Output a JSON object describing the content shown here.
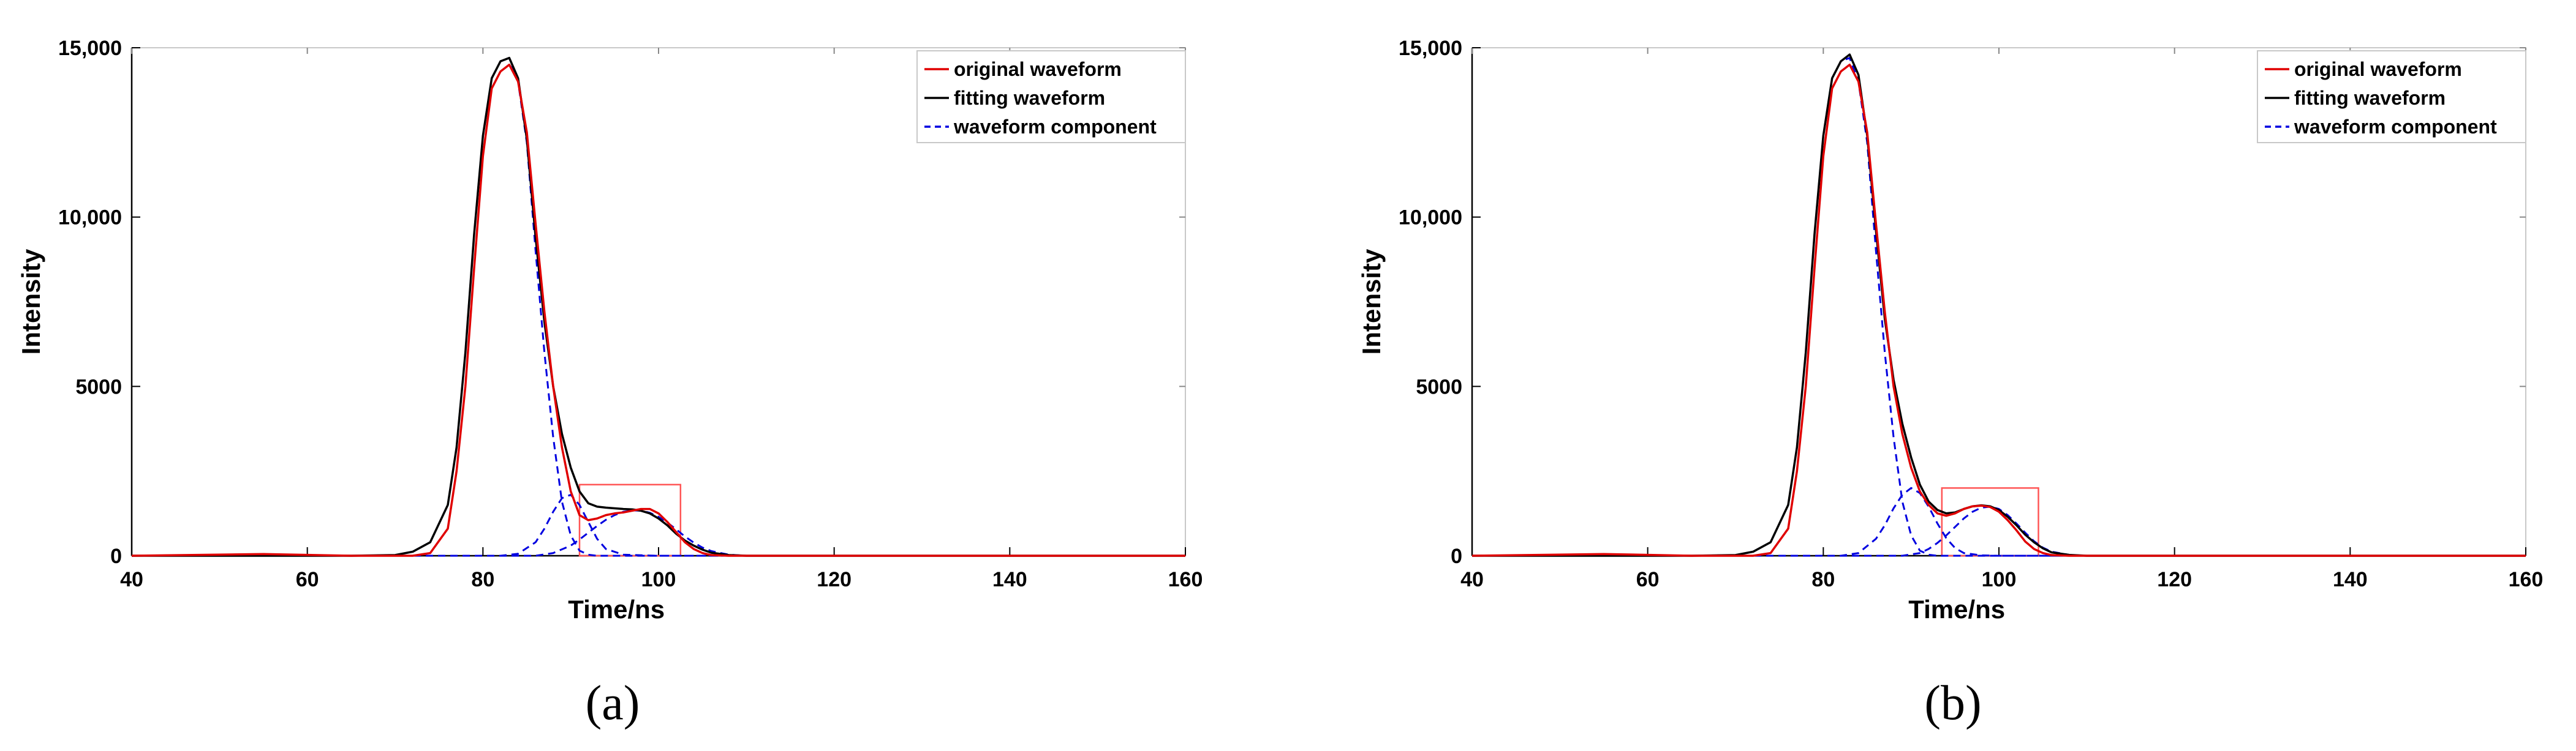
{
  "chart_data": [
    {
      "type": "line",
      "caption": "(a)",
      "xlabel": "Time/ns",
      "ylabel": "Intensity",
      "xlim": [
        40,
        160
      ],
      "ylim": [
        0,
        15000
      ],
      "x_ticks": [
        "40",
        "60",
        "80",
        "100",
        "120",
        "140",
        "160"
      ],
      "y_ticks": [
        "0",
        "5000",
        "10,000",
        "15,000"
      ],
      "legend_position": "top-right",
      "grid": false,
      "highlight_box": {
        "x": [
          91,
          102.5
        ],
        "y": [
          0,
          2100
        ],
        "color": "#ff5555"
      },
      "series": [
        {
          "name": "original waveform",
          "style": "solid",
          "color": "#e00000",
          "x": [
            40,
            55,
            65,
            70,
            72,
            74,
            76,
            77,
            78,
            79,
            80,
            81,
            82,
            83,
            84,
            85,
            86,
            87,
            88,
            89,
            90,
            91,
            92,
            93,
            94,
            95,
            96,
            97,
            98,
            99,
            100,
            101,
            102,
            103,
            104,
            105,
            106,
            108,
            110,
            115,
            120,
            160
          ],
          "y": [
            0,
            50,
            0,
            0,
            0,
            80,
            800,
            2500,
            5000,
            8500,
            11800,
            13800,
            14300,
            14500,
            14000,
            12500,
            9800,
            7200,
            5000,
            3200,
            1900,
            1200,
            1050,
            1100,
            1200,
            1250,
            1280,
            1330,
            1380,
            1380,
            1250,
            1000,
            700,
            400,
            200,
            80,
            20,
            0,
            0,
            0,
            0,
            0
          ]
        },
        {
          "name": "fitting waveform",
          "style": "solid",
          "color": "#000000",
          "x": [
            40,
            65,
            70,
            72,
            74,
            76,
            77,
            78,
            79,
            80,
            81,
            82,
            83,
            84,
            85,
            86,
            87,
            88,
            89,
            90,
            91,
            92,
            93,
            94,
            95,
            96,
            97,
            98,
            99,
            100,
            101,
            102,
            103,
            104,
            105,
            106,
            108,
            110,
            115,
            120,
            160
          ],
          "y": [
            0,
            0,
            20,
            120,
            400,
            1500,
            3200,
            6000,
            9500,
            12400,
            14100,
            14600,
            14700,
            14100,
            12300,
            9400,
            6900,
            5000,
            3600,
            2600,
            1900,
            1550,
            1450,
            1420,
            1400,
            1380,
            1370,
            1330,
            1250,
            1100,
            900,
            650,
            450,
            300,
            180,
            90,
            20,
            0,
            0,
            0,
            0
          ]
        },
        {
          "name": "waveform component",
          "style": "dashed",
          "color": "#0000e0",
          "x": [
            40,
            65,
            70,
            72,
            74,
            76,
            77,
            78,
            79,
            80,
            81,
            82,
            83,
            84,
            85,
            86,
            87,
            88,
            89,
            90,
            91,
            92,
            93,
            94,
            160
          ],
          "y": [
            0,
            0,
            20,
            120,
            400,
            1500,
            3200,
            6000,
            9500,
            12400,
            14100,
            14600,
            14700,
            14000,
            12200,
            9000,
            6000,
            3500,
            1600,
            600,
            150,
            30,
            0,
            0,
            0
          ]
        },
        {
          "name": "",
          "style": "dashed",
          "color": "#0000e0",
          "x": [
            40,
            82,
            84,
            86,
            87,
            88,
            89,
            90,
            91,
            92,
            93,
            94,
            96,
            100,
            160
          ],
          "y": [
            0,
            0,
            60,
            400,
            800,
            1300,
            1700,
            1800,
            1500,
            1000,
            500,
            200,
            30,
            0,
            0
          ]
        },
        {
          "name": "",
          "style": "dashed",
          "color": "#0000e0",
          "x": [
            40,
            86,
            88,
            90,
            91,
            92,
            93,
            94,
            95,
            96,
            97,
            98,
            99,
            100,
            101,
            102,
            103,
            104,
            105,
            106,
            108,
            110,
            160
          ],
          "y": [
            0,
            0,
            80,
            300,
            480,
            680,
            880,
            1060,
            1200,
            1300,
            1340,
            1330,
            1270,
            1150,
            980,
            780,
            570,
            390,
            240,
            140,
            30,
            0,
            0
          ]
        }
      ]
    },
    {
      "type": "line",
      "caption": "(b)",
      "xlabel": "Time/ns",
      "ylabel": "Intensity",
      "xlim": [
        40,
        160
      ],
      "ylim": [
        0,
        15000
      ],
      "x_ticks": [
        "40",
        "60",
        "80",
        "100",
        "120",
        "140",
        "160"
      ],
      "y_ticks": [
        "0",
        "5000",
        "10,000",
        "15,000"
      ],
      "legend_position": "top-right",
      "grid": false,
      "highlight_box": {
        "x": [
          93.5,
          104.5
        ],
        "y": [
          0,
          2000
        ],
        "color": "#ff5555"
      },
      "series": [
        {
          "name": "original waveform",
          "style": "solid",
          "color": "#e00000",
          "x": [
            40,
            55,
            65,
            70,
            72,
            74,
            76,
            77,
            78,
            79,
            80,
            81,
            82,
            83,
            84,
            85,
            86,
            87,
            88,
            89,
            90,
            91,
            92,
            93,
            94,
            95,
            96,
            97,
            98,
            99,
            100,
            101,
            102,
            103,
            104,
            105,
            106,
            108,
            110,
            115,
            120,
            160
          ],
          "y": [
            0,
            50,
            0,
            0,
            0,
            80,
            800,
            2500,
            5000,
            8500,
            11800,
            13800,
            14300,
            14500,
            14000,
            12500,
            9800,
            7200,
            5000,
            3600,
            2600,
            1900,
            1500,
            1250,
            1180,
            1250,
            1380,
            1460,
            1480,
            1440,
            1300,
            1050,
            750,
            420,
            200,
            80,
            20,
            0,
            0,
            0,
            0,
            0
          ]
        },
        {
          "name": "fitting waveform",
          "style": "solid",
          "color": "#000000",
          "x": [
            40,
            65,
            70,
            72,
            74,
            76,
            77,
            78,
            79,
            80,
            81,
            82,
            83,
            84,
            85,
            86,
            87,
            88,
            89,
            90,
            91,
            92,
            93,
            94,
            95,
            96,
            97,
            98,
            99,
            100,
            101,
            102,
            103,
            104,
            105,
            106,
            108,
            110,
            115,
            120,
            160
          ],
          "y": [
            0,
            0,
            20,
            120,
            400,
            1500,
            3200,
            6000,
            9500,
            12400,
            14100,
            14600,
            14800,
            14200,
            12400,
            9600,
            7000,
            5200,
            3900,
            2900,
            2100,
            1600,
            1350,
            1250,
            1280,
            1380,
            1460,
            1490,
            1460,
            1350,
            1150,
            900,
            620,
            400,
            220,
            100,
            25,
            0,
            0,
            0,
            0
          ]
        },
        {
          "name": "waveform component",
          "style": "dashed",
          "color": "#0000e0",
          "x": [
            40,
            65,
            70,
            72,
            74,
            76,
            77,
            78,
            79,
            80,
            81,
            82,
            83,
            84,
            85,
            86,
            87,
            88,
            89,
            90,
            91,
            92,
            93,
            94,
            160
          ],
          "y": [
            0,
            0,
            20,
            120,
            400,
            1500,
            3200,
            6000,
            9500,
            12400,
            14100,
            14600,
            14700,
            14000,
            12200,
            9000,
            6000,
            3500,
            1600,
            600,
            150,
            30,
            0,
            0,
            0
          ]
        },
        {
          "name": "",
          "style": "dashed",
          "color": "#0000e0",
          "x": [
            40,
            82,
            84,
            86,
            87,
            88,
            89,
            90,
            91,
            92,
            93,
            94,
            95,
            96,
            98,
            100,
            160
          ],
          "y": [
            0,
            0,
            80,
            500,
            900,
            1400,
            1800,
            2000,
            1850,
            1450,
            950,
            520,
            230,
            80,
            10,
            0,
            0
          ]
        },
        {
          "name": "",
          "style": "dashed",
          "color": "#0000e0",
          "x": [
            40,
            89,
            91,
            92,
            93,
            94,
            95,
            96,
            97,
            98,
            99,
            100,
            101,
            102,
            103,
            104,
            105,
            106,
            108,
            110,
            160
          ],
          "y": [
            0,
            0,
            80,
            200,
            380,
            600,
            850,
            1100,
            1300,
            1420,
            1450,
            1380,
            1200,
            950,
            680,
            430,
            240,
            120,
            25,
            0,
            0
          ]
        }
      ]
    }
  ]
}
